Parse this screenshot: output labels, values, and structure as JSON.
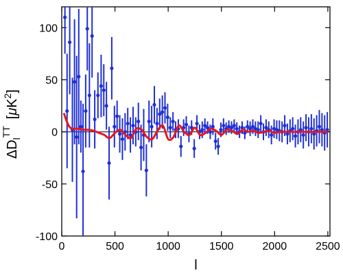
{
  "chart_data": {
    "type": "scatter",
    "title": "",
    "xlabel": "l",
    "ylabel_parts": {
      "base": "ΔD",
      "sub": "l",
      "sup": "TT",
      "unit_open": "[",
      "unit_mu": "μ",
      "unit_K": "K",
      "unit_sup": "2",
      "unit_close": "]"
    },
    "xlim": [
      0,
      2520
    ],
    "ylim": [
      -100,
      120
    ],
    "xticks": [
      0,
      500,
      1000,
      1500,
      2000,
      2500
    ],
    "yticks": [
      -100,
      -50,
      0,
      50,
      100
    ],
    "xtick_labels": [
      "0",
      "500",
      "1000",
      "1500",
      "2000",
      "2500"
    ],
    "ytick_labels": [
      "-100",
      "-50",
      "0",
      "50",
      "100"
    ],
    "colors": {
      "points": "#1f2fd4",
      "model": "#e8161b",
      "zero_line": "#000000"
    },
    "series": [
      {
        "kind": "points_with_errors",
        "points": [
          {
            "x": 30,
            "y": 110,
            "err": 35
          },
          {
            "x": 50,
            "y": 20,
            "err": 55
          },
          {
            "x": 75,
            "y": 86,
            "err": 50
          },
          {
            "x": 100,
            "y": 2,
            "err": 50
          },
          {
            "x": 120,
            "y": 48,
            "err": 60
          },
          {
            "x": 140,
            "y": -5,
            "err": 78
          },
          {
            "x": 160,
            "y": 53,
            "err": 65
          },
          {
            "x": 180,
            "y": 5,
            "err": 25
          },
          {
            "x": 200,
            "y": -38,
            "err": 65
          },
          {
            "x": 225,
            "y": 20,
            "err": 35
          },
          {
            "x": 240,
            "y": 99,
            "err": 40
          },
          {
            "x": 260,
            "y": 35,
            "err": 50
          },
          {
            "x": 285,
            "y": 92,
            "err": 40
          },
          {
            "x": 310,
            "y": 12,
            "err": 28
          },
          {
            "x": 340,
            "y": 35,
            "err": 22
          },
          {
            "x": 370,
            "y": 44,
            "err": 30
          },
          {
            "x": 395,
            "y": 40,
            "err": 25
          },
          {
            "x": 420,
            "y": 25,
            "err": 23
          },
          {
            "x": 445,
            "y": -30,
            "err": 35
          },
          {
            "x": 470,
            "y": 61,
            "err": 30
          },
          {
            "x": 495,
            "y": 5,
            "err": 20
          },
          {
            "x": 520,
            "y": 15,
            "err": 15
          },
          {
            "x": 545,
            "y": -2,
            "err": 18
          },
          {
            "x": 570,
            "y": -7,
            "err": 20
          },
          {
            "x": 595,
            "y": 0,
            "err": 18
          },
          {
            "x": 620,
            "y": 8,
            "err": 15
          },
          {
            "x": 645,
            "y": -3,
            "err": 17
          },
          {
            "x": 670,
            "y": 6,
            "err": 18
          },
          {
            "x": 695,
            "y": 0,
            "err": 14
          },
          {
            "x": 720,
            "y": 10,
            "err": 18
          },
          {
            "x": 745,
            "y": -15,
            "err": 22
          },
          {
            "x": 770,
            "y": -3,
            "err": 25
          },
          {
            "x": 795,
            "y": -37,
            "err": 25
          },
          {
            "x": 820,
            "y": 10,
            "err": 20
          },
          {
            "x": 845,
            "y": 5,
            "err": 20
          },
          {
            "x": 870,
            "y": 26,
            "err": 18
          },
          {
            "x": 895,
            "y": 8,
            "err": 15
          },
          {
            "x": 920,
            "y": 17,
            "err": 15
          },
          {
            "x": 945,
            "y": 19,
            "err": 16
          },
          {
            "x": 970,
            "y": 23,
            "err": 15
          },
          {
            "x": 995,
            "y": 14,
            "err": 13
          },
          {
            "x": 1020,
            "y": 4,
            "err": 10
          },
          {
            "x": 1045,
            "y": 10,
            "err": 9
          },
          {
            "x": 1070,
            "y": 2,
            "err": 8
          },
          {
            "x": 1095,
            "y": 3,
            "err": 9
          },
          {
            "x": 1120,
            "y": -14,
            "err": 10
          },
          {
            "x": 1145,
            "y": 4,
            "err": 8
          },
          {
            "x": 1170,
            "y": 7,
            "err": 8
          },
          {
            "x": 1195,
            "y": -2,
            "err": 8
          },
          {
            "x": 1220,
            "y": 4,
            "err": 7
          },
          {
            "x": 1245,
            "y": -16,
            "err": 9
          },
          {
            "x": 1270,
            "y": 8,
            "err": 8
          },
          {
            "x": 1295,
            "y": 0,
            "err": 7
          },
          {
            "x": 1320,
            "y": 2,
            "err": 8
          },
          {
            "x": 1345,
            "y": 6,
            "err": 7
          },
          {
            "x": 1370,
            "y": 4,
            "err": 6
          },
          {
            "x": 1395,
            "y": 0,
            "err": 7
          },
          {
            "x": 1420,
            "y": 5,
            "err": 8
          },
          {
            "x": 1445,
            "y": -9,
            "err": 8
          },
          {
            "x": 1470,
            "y": -14,
            "err": 8
          },
          {
            "x": 1495,
            "y": 2,
            "err": 7
          },
          {
            "x": 1520,
            "y": 6,
            "err": 7
          },
          {
            "x": 1545,
            "y": 3,
            "err": 6
          },
          {
            "x": 1570,
            "y": 5,
            "err": 6
          },
          {
            "x": 1595,
            "y": 4,
            "err": 6
          },
          {
            "x": 1620,
            "y": 6,
            "err": 6
          },
          {
            "x": 1645,
            "y": 3,
            "err": 6
          },
          {
            "x": 1670,
            "y": 0,
            "err": 6
          },
          {
            "x": 1695,
            "y": 4,
            "err": 6
          },
          {
            "x": 1720,
            "y": -1,
            "err": 6
          },
          {
            "x": 1745,
            "y": 5,
            "err": 6
          },
          {
            "x": 1770,
            "y": 3,
            "err": 7
          },
          {
            "x": 1795,
            "y": 5,
            "err": 7
          },
          {
            "x": 1820,
            "y": 3,
            "err": 7
          },
          {
            "x": 1845,
            "y": 2,
            "err": 8
          },
          {
            "x": 1870,
            "y": 8,
            "err": 8
          },
          {
            "x": 1895,
            "y": 0,
            "err": 8
          },
          {
            "x": 1920,
            "y": 4,
            "err": 8
          },
          {
            "x": 1945,
            "y": 2,
            "err": 8
          },
          {
            "x": 1970,
            "y": -3,
            "err": 9
          },
          {
            "x": 1995,
            "y": 3,
            "err": 9
          },
          {
            "x": 2020,
            "y": 2,
            "err": 9
          },
          {
            "x": 2045,
            "y": 1,
            "err": 10
          },
          {
            "x": 2070,
            "y": 0,
            "err": 10
          },
          {
            "x": 2095,
            "y": 6,
            "err": 10
          },
          {
            "x": 2120,
            "y": -2,
            "err": 10
          },
          {
            "x": 2145,
            "y": 1,
            "err": 11
          },
          {
            "x": 2170,
            "y": 3,
            "err": 11
          },
          {
            "x": 2195,
            "y": -4,
            "err": 11
          },
          {
            "x": 2220,
            "y": 0,
            "err": 12
          },
          {
            "x": 2245,
            "y": 2,
            "err": 12
          },
          {
            "x": 2270,
            "y": -3,
            "err": 13
          },
          {
            "x": 2295,
            "y": 4,
            "err": 13
          },
          {
            "x": 2320,
            "y": 0,
            "err": 14
          },
          {
            "x": 2345,
            "y": 3,
            "err": 14
          },
          {
            "x": 2370,
            "y": -2,
            "err": 15
          },
          {
            "x": 2395,
            "y": 1,
            "err": 15
          },
          {
            "x": 2420,
            "y": 5,
            "err": 16
          },
          {
            "x": 2445,
            "y": 2,
            "err": 16
          },
          {
            "x": 2470,
            "y": -1,
            "err": 17
          },
          {
            "x": 2495,
            "y": 2,
            "err": 17
          }
        ]
      },
      {
        "kind": "line",
        "x": [
          20,
          40,
          60,
          80,
          100,
          130,
          160,
          200,
          250,
          300,
          350,
          400,
          450,
          500,
          550,
          600,
          650,
          700,
          750,
          800,
          850,
          900,
          950,
          1000,
          1050,
          1100,
          1150,
          1200,
          1250,
          1300,
          1350,
          1400,
          1450,
          1500,
          1550,
          1600,
          1650,
          1700,
          1750,
          1800,
          1850,
          1900,
          1950,
          2000,
          2050,
          2100,
          2150,
          2200,
          2250,
          2300,
          2350,
          2400,
          2450,
          2500
        ],
        "y": [
          18,
          12,
          7,
          4,
          3,
          3,
          3,
          2,
          2,
          1,
          -1,
          -3,
          -6,
          -1,
          2,
          -3,
          -6,
          3,
          2,
          -5,
          -7,
          1,
          6,
          -7,
          -5,
          6,
          0,
          -3,
          4,
          -3,
          -1,
          3,
          1,
          -3,
          2,
          1,
          -2,
          2,
          0,
          1,
          -1,
          0,
          1,
          -1,
          0,
          0,
          0,
          0,
          0,
          0,
          0,
          0,
          0,
          0
        ]
      }
    ]
  }
}
